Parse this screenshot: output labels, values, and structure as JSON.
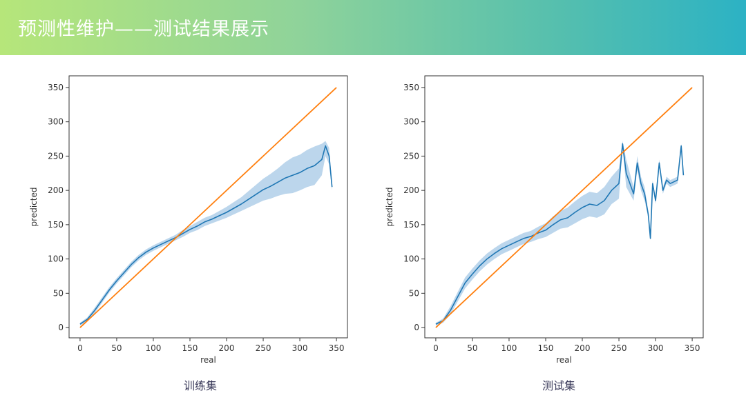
{
  "header": {
    "title": "预测性维护——测试结果展示",
    "colors": {
      "start": "#b6e67a",
      "end": "#2cb2c4"
    }
  },
  "captions": {
    "train": "训练集",
    "test": "测试集"
  },
  "colors": {
    "prediction": "#1f77b4",
    "band": "#a6c8e6",
    "diagonal": "#ff7f0e"
  },
  "chart_data": [
    {
      "type": "line",
      "xlabel": "real",
      "ylabel": "predicted",
      "xlim": [
        -15,
        365
      ],
      "ylim": [
        -15,
        367
      ],
      "xticks": [
        0,
        50,
        100,
        150,
        200,
        250,
        300,
        350
      ],
      "yticks": [
        0,
        50,
        100,
        150,
        200,
        250,
        300,
        350
      ],
      "grid": false,
      "series": [
        {
          "role": "prediction-mean-with-confidence-band",
          "points": [
            [
              0,
              5,
              3,
              7
            ],
            [
              10,
              12,
              9,
              15
            ],
            [
              20,
              25,
              21,
              29
            ],
            [
              30,
              40,
              36,
              44
            ],
            [
              40,
              55,
              51,
              59
            ],
            [
              50,
              68,
              64,
              72
            ],
            [
              60,
              80,
              76,
              84
            ],
            [
              70,
              92,
              88,
              96
            ],
            [
              80,
              102,
              98,
              106
            ],
            [
              90,
              110,
              106,
              114
            ],
            [
              100,
              116,
              112,
              120
            ],
            [
              110,
              121,
              117,
              125
            ],
            [
              120,
              126,
              122,
              130
            ],
            [
              130,
              131,
              127,
              135
            ],
            [
              140,
              137,
              132,
              142
            ],
            [
              150,
              143,
              138,
              148
            ],
            [
              160,
              148,
              142,
              154
            ],
            [
              170,
              154,
              148,
              160
            ],
            [
              180,
              158,
              152,
              164
            ],
            [
              190,
              163,
              156,
              170
            ],
            [
              200,
              168,
              160,
              176
            ],
            [
              210,
              174,
              165,
              183
            ],
            [
              220,
              180,
              170,
              190
            ],
            [
              230,
              187,
              175,
              199
            ],
            [
              240,
              194,
              180,
              208
            ],
            [
              250,
              201,
              185,
              217
            ],
            [
              260,
              206,
              188,
              224
            ],
            [
              270,
              212,
              192,
              232
            ],
            [
              280,
              218,
              195,
              241
            ],
            [
              290,
              222,
              196,
              248
            ],
            [
              300,
              226,
              200,
              252
            ],
            [
              310,
              232,
              205,
              259
            ],
            [
              320,
              236,
              208,
              264
            ],
            [
              330,
              245,
              222,
              268
            ],
            [
              335,
              265,
              250,
              272
            ],
            [
              340,
              250,
              238,
              262
            ],
            [
              344,
              205,
              200,
              210
            ]
          ]
        },
        {
          "role": "identity-line",
          "x": [
            0,
            350
          ],
          "y": [
            0,
            350
          ]
        }
      ]
    },
    {
      "type": "line",
      "xlabel": "real",
      "ylabel": "predicted",
      "xlim": [
        -15,
        365
      ],
      "ylim": [
        -15,
        367
      ],
      "xticks": [
        0,
        50,
        100,
        150,
        200,
        250,
        300,
        350
      ],
      "yticks": [
        0,
        50,
        100,
        150,
        200,
        250,
        300,
        350
      ],
      "grid": false,
      "series": [
        {
          "role": "prediction-mean-with-confidence-band",
          "points": [
            [
              0,
              5,
              3,
              7
            ],
            [
              10,
              10,
              7,
              13
            ],
            [
              20,
              25,
              19,
              31
            ],
            [
              30,
              45,
              38,
              52
            ],
            [
              40,
              65,
              57,
              73
            ],
            [
              50,
              78,
              70,
              86
            ],
            [
              60,
              90,
              82,
              98
            ],
            [
              70,
              100,
              92,
              108
            ],
            [
              80,
              108,
              100,
              116
            ],
            [
              90,
              115,
              107,
              123
            ],
            [
              100,
              120,
              112,
              128
            ],
            [
              110,
              125,
              117,
              133
            ],
            [
              120,
              130,
              122,
              138
            ],
            [
              130,
              133,
              125,
              141
            ],
            [
              140,
              138,
              129,
              147
            ],
            [
              150,
              142,
              132,
              152
            ],
            [
              160,
              150,
              138,
              162
            ],
            [
              170,
              157,
              144,
              170
            ],
            [
              180,
              160,
              146,
              175
            ],
            [
              190,
              168,
              152,
              184
            ],
            [
              200,
              175,
              158,
              192
            ],
            [
              210,
              180,
              162,
              198
            ],
            [
              220,
              178,
              160,
              196
            ],
            [
              230,
              185,
              165,
              205
            ],
            [
              240,
              200,
              180,
              220
            ],
            [
              250,
              210,
              188,
              232
            ],
            [
              255,
              268,
              262,
              272
            ],
            [
              260,
              225,
              205,
              245
            ],
            [
              270,
              195,
              185,
              205
            ],
            [
              275,
              240,
              230,
              250
            ],
            [
              280,
              210,
              200,
              220
            ],
            [
              285,
              195,
              185,
              205
            ],
            [
              290,
              165,
              160,
              170
            ],
            [
              293,
              130,
              128,
              132
            ],
            [
              296,
              210,
              205,
              215
            ],
            [
              300,
              185,
              180,
              190
            ],
            [
              305,
              240,
              235,
              245
            ],
            [
              310,
              200,
              195,
              205
            ],
            [
              315,
              215,
              210,
              220
            ],
            [
              320,
              210,
              205,
              215
            ],
            [
              330,
              215,
              210,
              220
            ],
            [
              335,
              265,
              262,
              268
            ],
            [
              338,
              222,
              220,
              224
            ]
          ]
        },
        {
          "role": "identity-line",
          "x": [
            0,
            350
          ],
          "y": [
            0,
            350
          ]
        }
      ]
    }
  ]
}
